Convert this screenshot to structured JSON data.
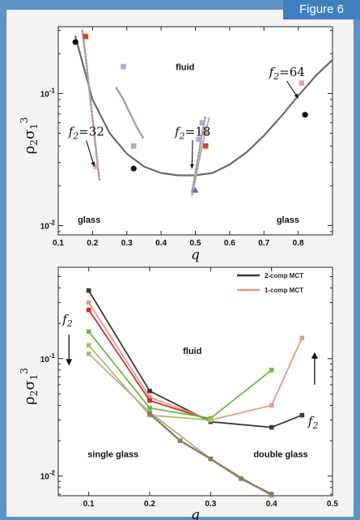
{
  "figure_label": "Figure 6",
  "colors": {
    "frame": "#5a93c4",
    "badge": "#3f7fbe"
  },
  "chart_data": [
    {
      "type": "line",
      "xlabel": "q",
      "ylabel": "ρ2σ1³",
      "xlim": [
        0.1,
        0.9
      ],
      "ylim_log": [
        0.0085,
        0.32
      ],
      "y_scale": "log",
      "xticks": [
        0.1,
        0.2,
        0.3,
        0.4,
        0.5,
        0.6,
        0.7,
        0.8
      ],
      "xtick_labels": [
        "0.1",
        "0.2",
        "0.3",
        "0.4",
        "0.5",
        "0.6",
        "0.7",
        "0.8"
      ],
      "yticks": [
        0.01,
        0.1
      ],
      "ytick_labels": [
        "10-2",
        "10-1"
      ],
      "regions": [
        {
          "text": "fluid",
          "x": 0.47,
          "y": 0.15
        },
        {
          "text": "glass",
          "x": 0.19,
          "y": 0.0105
        },
        {
          "text": "glass",
          "x": 0.77,
          "y": 0.0105
        }
      ],
      "annotations": [
        {
          "label": "f2=32",
          "text_x": 0.13,
          "text_y": 0.048,
          "to_x": 0.205,
          "to_y": 0.028
        },
        {
          "label": "f2=18",
          "text_x": 0.44,
          "text_y": 0.048,
          "to_x": 0.49,
          "to_y": 0.027
        },
        {
          "label": "f2=64",
          "text_x": 0.715,
          "text_y": 0.135,
          "to_x": 0.8,
          "to_y": 0.092
        }
      ],
      "series": [
        {
          "role": "curve",
          "color": "#6a6a6a",
          "style": "solid",
          "x": [
            0.15,
            0.2,
            0.25,
            0.3,
            0.35,
            0.4,
            0.45,
            0.5,
            0.55,
            0.6,
            0.65,
            0.7,
            0.75,
            0.8,
            0.85,
            0.9
          ],
          "y": [
            0.27,
            0.09,
            0.05,
            0.035,
            0.028,
            0.025,
            0.024,
            0.024,
            0.025,
            0.029,
            0.036,
            0.048,
            0.067,
            0.096,
            0.135,
            0.18
          ]
        },
        {
          "role": "branch",
          "color": "#b09a95",
          "style": "dotted",
          "x": [
            0.17,
            0.18,
            0.19,
            0.2,
            0.21,
            0.22
          ],
          "y": [
            0.3,
            0.19,
            0.11,
            0.065,
            0.038,
            0.022
          ]
        },
        {
          "role": "branch",
          "color": "#a898b4",
          "style": "dotted",
          "x": [
            0.27,
            0.29,
            0.31,
            0.33,
            0.35
          ],
          "y": [
            0.11,
            0.09,
            0.07,
            0.055,
            0.045
          ]
        },
        {
          "role": "branch",
          "color": "#a898b4",
          "style": "dotted",
          "x": [
            0.49,
            0.5,
            0.51,
            0.52,
            0.53
          ],
          "y": [
            0.018,
            0.025,
            0.035,
            0.05,
            0.068
          ]
        },
        {
          "role": "branch",
          "color": "#a8a8a8",
          "style": "solid",
          "x": [
            0.49,
            0.5,
            0.51,
            0.52,
            0.53,
            0.54
          ],
          "y": [
            0.017,
            0.022,
            0.03,
            0.04,
            0.052,
            0.065
          ]
        },
        {
          "role": "markers",
          "color": "#111111",
          "shape": "circle",
          "x": [
            0.15,
            0.32,
            0.82
          ],
          "y": [
            0.245,
            0.027,
            0.069
          ]
        },
        {
          "role": "markers",
          "color": "#d04828",
          "shape": "square",
          "x": [
            0.18,
            0.53
          ],
          "y": [
            0.27,
            0.04
          ]
        },
        {
          "role": "markers",
          "color": "#b8a6c8",
          "shape": "square",
          "x": [
            0.29,
            0.32,
            0.51,
            0.52
          ],
          "y": [
            0.16,
            0.04,
            0.045,
            0.06
          ]
        },
        {
          "role": "markers",
          "color": "#e2a6aa",
          "shape": "square",
          "x": [
            0.21,
            0.81
          ],
          "y": [
            0.028,
            0.12
          ]
        },
        {
          "role": "markers",
          "color": "#6a62b8",
          "shape": "triangle",
          "x": [
            0.5
          ],
          "y": [
            0.0185
          ]
        },
        {
          "role": "markers",
          "color": "#c4b088",
          "shape": "square",
          "x": [
            0.53
          ],
          "y": [
            0.05
          ]
        }
      ]
    },
    {
      "type": "line",
      "xlabel": "q",
      "ylabel": "ρ2σ1³",
      "xlim": [
        0.05,
        0.5
      ],
      "ylim_log": [
        0.0068,
        0.6
      ],
      "y_scale": "log",
      "xticks": [
        0.1,
        0.2,
        0.3,
        0.4,
        0.5
      ],
      "xtick_labels": [
        "0.1",
        "0.2",
        "0.3",
        "0.4",
        "0.5"
      ],
      "yticks": [
        0.01,
        0.1
      ],
      "ytick_labels": [
        "10-2",
        "10-1"
      ],
      "legend_position": "top-right",
      "regions": [
        {
          "text": "fluid",
          "x": 0.27,
          "y": 0.11
        },
        {
          "text": "single glass",
          "x": 0.14,
          "y": 0.0145
        },
        {
          "text": "double glass",
          "x": 0.415,
          "y": 0.0145
        }
      ],
      "arrows": [
        {
          "label": "f2",
          "direction": "down",
          "x": 0.065,
          "y_text": 0.2,
          "y_from": 0.16,
          "y_to": 0.09
        },
        {
          "label": "f2",
          "direction": "up",
          "x": 0.468,
          "y_text": 0.027,
          "y_from": 0.06,
          "y_to": 0.11
        }
      ],
      "series": [
        {
          "name": "2-comp MCT",
          "legend": true,
          "color": "#3a3a3a",
          "style": "solid",
          "x": [
            0.1,
            0.2,
            0.3,
            0.4,
            0.45
          ],
          "y": [
            0.38,
            0.053,
            0.029,
            0.026,
            0.033
          ]
        },
        {
          "name": "1-comp MCT",
          "legend": true,
          "color": "#e49a86",
          "style": "solid",
          "x": [
            0.1,
            0.2,
            0.3,
            0.4,
            0.45
          ],
          "y": [
            0.3,
            0.047,
            0.03,
            0.04,
            0.15
          ]
        },
        {
          "name": "",
          "legend": false,
          "color": "#cc2e2e",
          "style": "solid",
          "x": [
            0.1,
            0.2,
            0.3
          ],
          "y": [
            0.26,
            0.044,
            0.03
          ]
        },
        {
          "name": "",
          "legend": false,
          "color": "#66bb4a",
          "style": "solid",
          "x": [
            0.1,
            0.2,
            0.3,
            0.4
          ],
          "y": [
            0.17,
            0.038,
            0.031,
            0.08
          ]
        },
        {
          "name": "",
          "legend": false,
          "color": "#aabf6a",
          "style": "solid",
          "x": [
            0.1,
            0.2,
            0.3
          ],
          "y": [
            0.13,
            0.033,
            0.03
          ]
        },
        {
          "name": "",
          "legend": false,
          "color": "#b5ad98",
          "style": "solid",
          "x": [
            0.1,
            0.2,
            0.3,
            0.4
          ],
          "y": [
            0.11,
            0.035,
            0.014,
            0.0068
          ]
        },
        {
          "name": "",
          "legend": false,
          "color": "#8a7a58",
          "style": "dotted",
          "x": [
            0.2,
            0.25,
            0.3,
            0.35,
            0.4
          ],
          "y": [
            0.034,
            0.02,
            0.014,
            0.0095,
            0.007
          ]
        }
      ]
    }
  ]
}
